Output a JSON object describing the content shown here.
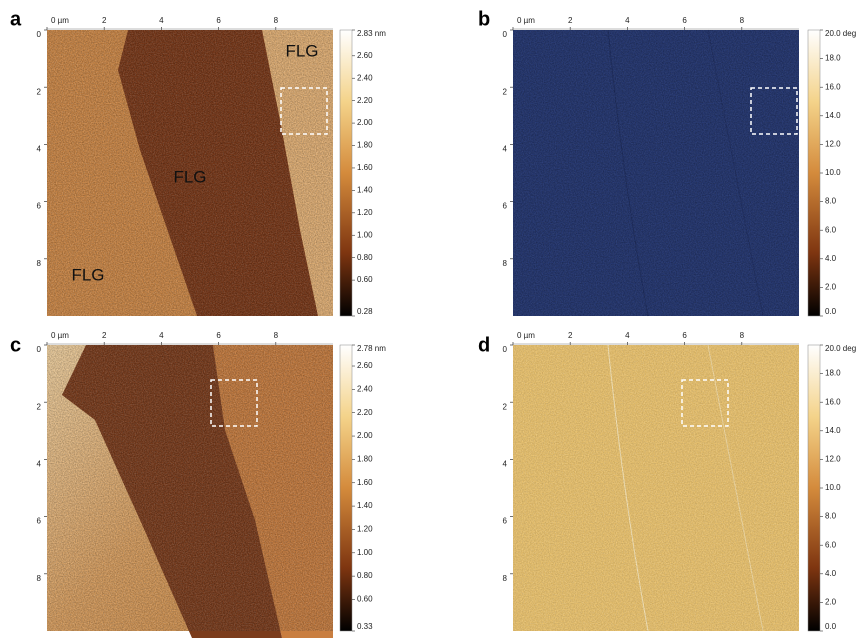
{
  "panels": [
    {
      "label": "a",
      "xlim": [
        0,
        10
      ],
      "ylim": [
        0,
        10
      ],
      "xticks": [
        {
          "value": 0,
          "label": "0 µm"
        },
        2,
        4,
        6,
        8
      ],
      "yticks": [
        0,
        2,
        4,
        6,
        8
      ],
      "colorbar": {
        "range": [
          0.28,
          2.83
        ],
        "ticks": [
          {
            "value": 2.83,
            "label": "2.83 nm"
          },
          {
            "value": 2.6,
            "label": "2.60"
          },
          {
            "value": 2.4,
            "label": "2.40"
          },
          {
            "value": 2.2,
            "label": "2.20"
          },
          {
            "value": 2,
            "label": "2.00"
          },
          {
            "value": 1.8,
            "label": "1.80"
          },
          {
            "value": 1.6,
            "label": "1.60"
          },
          {
            "value": 1.4,
            "label": "1.40"
          },
          {
            "value": 1.2,
            "label": "1.20"
          },
          {
            "value": 1,
            "label": "1.00"
          },
          {
            "value": 0.8,
            "label": "0.80"
          },
          {
            "value": 0.6,
            "label": "0.60"
          },
          {
            "value": 0.28,
            "label": "0.28"
          }
        ]
      },
      "annotations": [
        "FLG",
        "FLG",
        "FLG"
      ]
    },
    {
      "label": "b",
      "xlim": [
        0,
        10
      ],
      "ylim": [
        0,
        10
      ],
      "xticks": [
        {
          "value": 0,
          "label": "0 µm"
        },
        2,
        4,
        6,
        8
      ],
      "yticks": [
        0,
        2,
        4,
        6,
        8
      ],
      "colorbar": {
        "range": [
          0,
          20
        ],
        "ticks": [
          {
            "value": 20,
            "label": "20.0 deg"
          },
          {
            "value": 18,
            "label": "18.0"
          },
          {
            "value": 16,
            "label": "16.0"
          },
          {
            "value": 14,
            "label": "14.0"
          },
          {
            "value": 12,
            "label": "12.0"
          },
          {
            "value": 10,
            "label": "10.0"
          },
          {
            "value": 8,
            "label": "8.0"
          },
          {
            "value": 6,
            "label": "6.0"
          },
          {
            "value": 4,
            "label": "4.0"
          },
          {
            "value": 2,
            "label": "2.0"
          },
          {
            "value": 0,
            "label": "0.0"
          }
        ]
      },
      "annotations": []
    },
    {
      "label": "c",
      "xlim": [
        0,
        10
      ],
      "ylim": [
        0,
        10
      ],
      "xticks": [
        {
          "value": 0,
          "label": "0 µm"
        },
        2,
        4,
        6,
        8
      ],
      "yticks": [
        0,
        2,
        4,
        6,
        8
      ],
      "colorbar": {
        "range": [
          0.33,
          2.78
        ],
        "ticks": [
          {
            "value": 2.78,
            "label": "2.78 nm"
          },
          {
            "value": 2.6,
            "label": "2.60"
          },
          {
            "value": 2.4,
            "label": "2.40"
          },
          {
            "value": 2.2,
            "label": "2.20"
          },
          {
            "value": 2,
            "label": "2.00"
          },
          {
            "value": 1.8,
            "label": "1.80"
          },
          {
            "value": 1.6,
            "label": "1.60"
          },
          {
            "value": 1.4,
            "label": "1.40"
          },
          {
            "value": 1.2,
            "label": "1.20"
          },
          {
            "value": 1,
            "label": "1.00"
          },
          {
            "value": 0.8,
            "label": "0.80"
          },
          {
            "value": 0.6,
            "label": "0.60"
          },
          {
            "value": 0.33,
            "label": "0.33"
          }
        ]
      },
      "annotations": []
    },
    {
      "label": "d",
      "xlim": [
        0,
        10
      ],
      "ylim": [
        0,
        10
      ],
      "xticks": [
        {
          "value": 0,
          "label": "0 µm"
        },
        2,
        4,
        6,
        8
      ],
      "yticks": [
        0,
        2,
        4,
        6,
        8
      ],
      "colorbar": {
        "range": [
          0,
          20
        ],
        "ticks": [
          {
            "value": 20,
            "label": "20.0 deg"
          },
          {
            "value": 18,
            "label": "18.0"
          },
          {
            "value": 16,
            "label": "16.0"
          },
          {
            "value": 14,
            "label": "14.0"
          },
          {
            "value": 12,
            "label": "12.0"
          },
          {
            "value": 10,
            "label": "10.0"
          },
          {
            "value": 8,
            "label": "8.0"
          },
          {
            "value": 6,
            "label": "6.0"
          },
          {
            "value": 4,
            "label": "4.0"
          },
          {
            "value": 2,
            "label": "2.0"
          },
          {
            "value": 0,
            "label": "0.0"
          }
        ]
      },
      "annotations": []
    }
  ]
}
